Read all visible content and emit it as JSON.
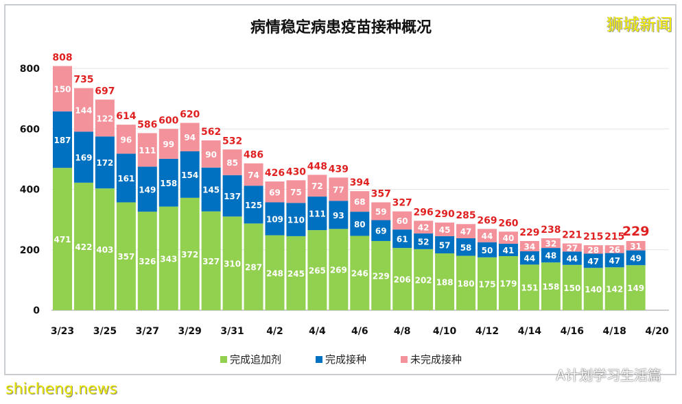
{
  "chart_data": {
    "type": "bar",
    "stacked": true,
    "title": "病情稳定病患疫苗接种概况",
    "categories": [
      "3/23",
      "3/24",
      "3/25",
      "3/26",
      "3/27",
      "3/28",
      "3/29",
      "3/30",
      "3/31",
      "4/1",
      "4/2",
      "4/3",
      "4/4",
      "4/5",
      "4/6",
      "4/7",
      "4/8",
      "4/9",
      "4/10",
      "4/11",
      "4/12",
      "4/13",
      "4/14",
      "4/15",
      "4/16",
      "4/17",
      "4/18",
      "4/19"
    ],
    "x_tick_labels": [
      "3/23",
      "3/25",
      "3/27",
      "3/29",
      "3/31",
      "4/2",
      "4/4",
      "4/6",
      "4/8",
      "4/10",
      "4/12",
      "4/14",
      "4/16",
      "4/18",
      "4/20"
    ],
    "series": [
      {
        "name": "完成追加剂",
        "color": "#92d050",
        "values": [
          471,
          422,
          403,
          357,
          326,
          343,
          372,
          327,
          310,
          287,
          248,
          245,
          265,
          269,
          246,
          229,
          206,
          202,
          188,
          180,
          175,
          179,
          151,
          158,
          150,
          140,
          142,
          149
        ]
      },
      {
        "name": "完成接种",
        "color": "#0070c0",
        "values": [
          187,
          169,
          172,
          161,
          149,
          158,
          154,
          145,
          137,
          125,
          109,
          110,
          111,
          93,
          80,
          69,
          61,
          52,
          57,
          58,
          50,
          41,
          44,
          48,
          44,
          47,
          47,
          49
        ]
      },
      {
        "name": "未完成接种",
        "color": "#f4929b",
        "values": [
          150,
          144,
          122,
          96,
          111,
          99,
          94,
          90,
          85,
          74,
          69,
          75,
          72,
          77,
          68,
          59,
          60,
          42,
          45,
          47,
          44,
          40,
          34,
          32,
          27,
          28,
          26,
          31
        ]
      }
    ],
    "totals": [
      808,
      735,
      697,
      614,
      586,
      600,
      620,
      562,
      532,
      486,
      426,
      430,
      448,
      439,
      394,
      357,
      327,
      296,
      290,
      285,
      269,
      260,
      229,
      238,
      221,
      215,
      215,
      229
    ],
    "total_label_color": "#e02020",
    "ylim": [
      0,
      800
    ],
    "y_ticks": [
      0,
      200,
      400,
      600,
      800
    ],
    "grid": true,
    "legend_position": "bottom"
  },
  "watermarks": {
    "logo": "狮城新闻",
    "site": "shicheng.news",
    "wechat": "A计划学习生活篇"
  }
}
